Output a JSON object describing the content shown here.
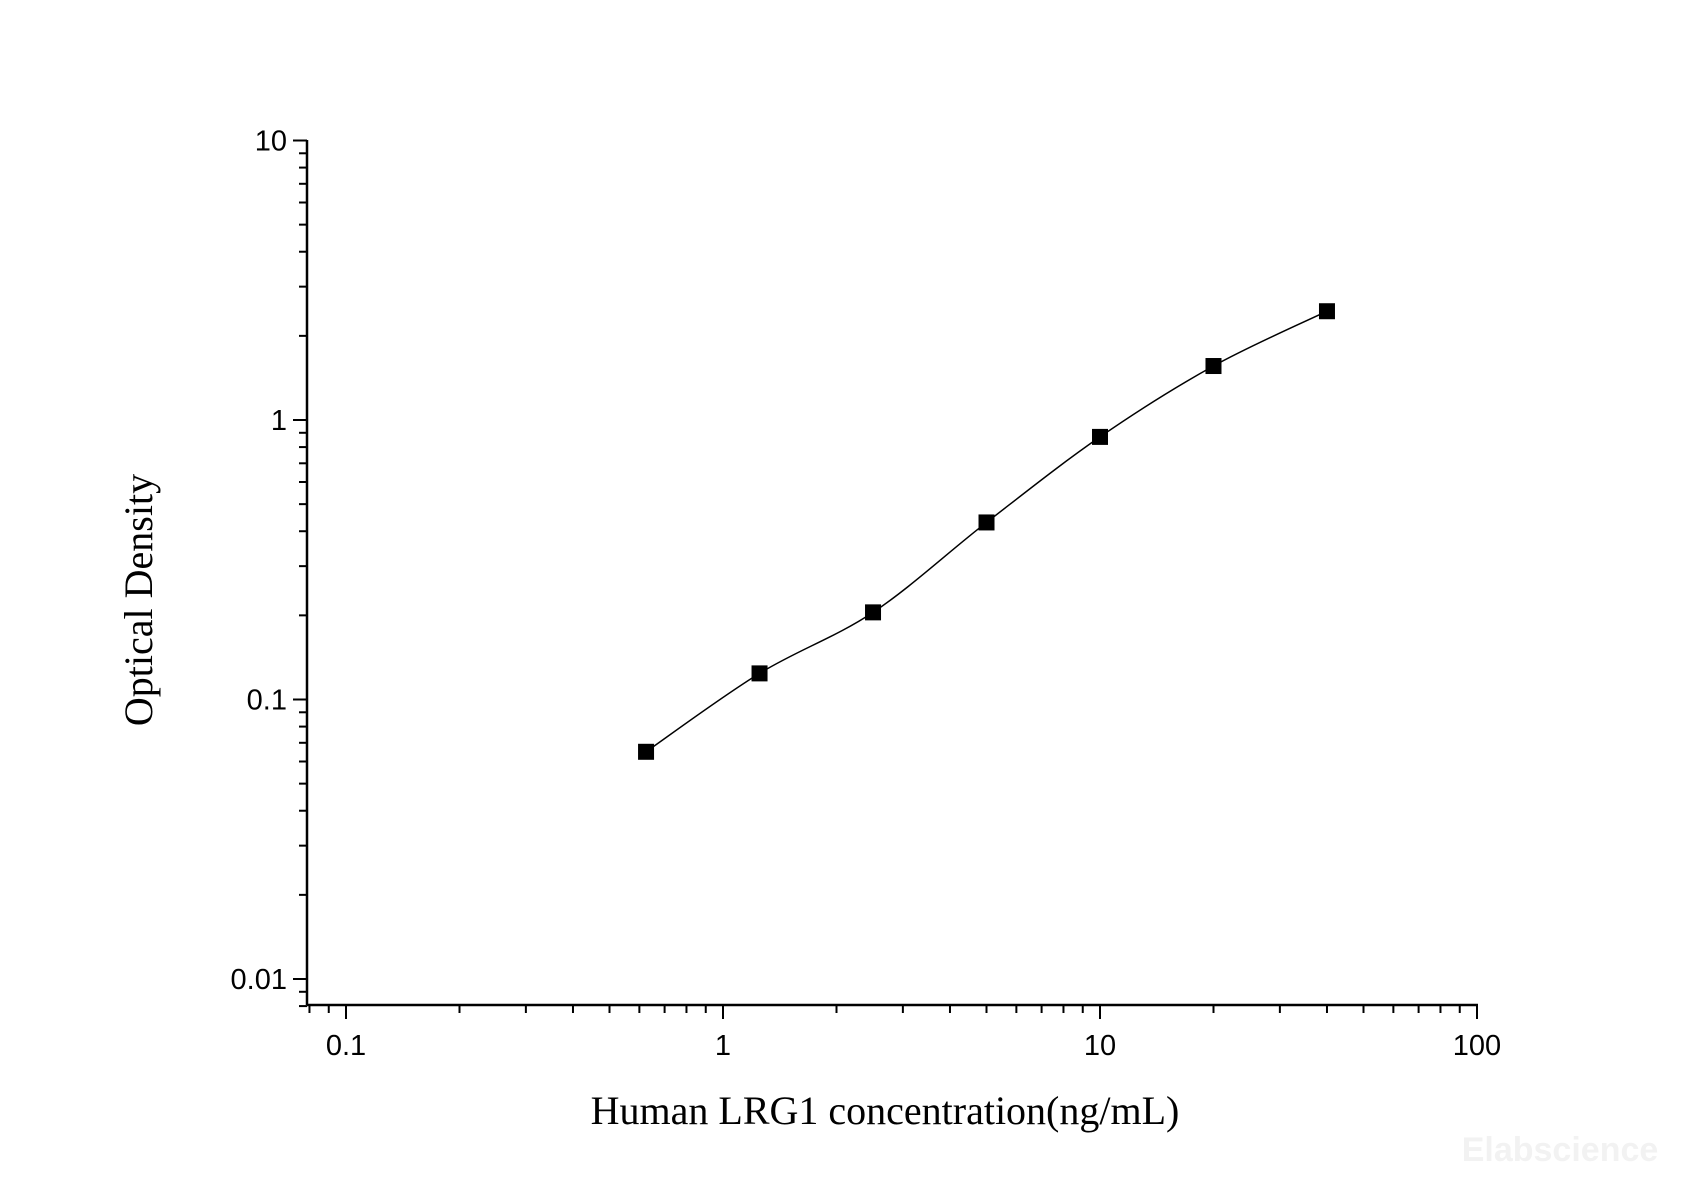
{
  "chart_data": {
    "type": "scatter",
    "xlabel": "Human LRG1 concentration(ng/mL)",
    "ylabel": "Optical Density",
    "x_scale": "log",
    "y_scale": "log",
    "xlim": [
      0.08,
      100
    ],
    "ylim": [
      0.0075,
      10
    ],
    "x_ticks": [
      "0.1",
      "1",
      "10",
      "100"
    ],
    "y_ticks": [
      "10",
      "1",
      "0.1",
      "0.01"
    ],
    "grid": false,
    "legend": "none",
    "marker_color": "#000000",
    "curve_color": "#000000",
    "series": [
      {
        "marker": "square",
        "fit": "smooth-curve",
        "x": [
          0.625,
          1.25,
          2.5,
          5,
          10,
          20,
          40
        ],
        "y": [
          0.065,
          0.124,
          0.205,
          0.43,
          0.87,
          1.56,
          2.45
        ]
      }
    ]
  },
  "watermark": "Elabscience"
}
